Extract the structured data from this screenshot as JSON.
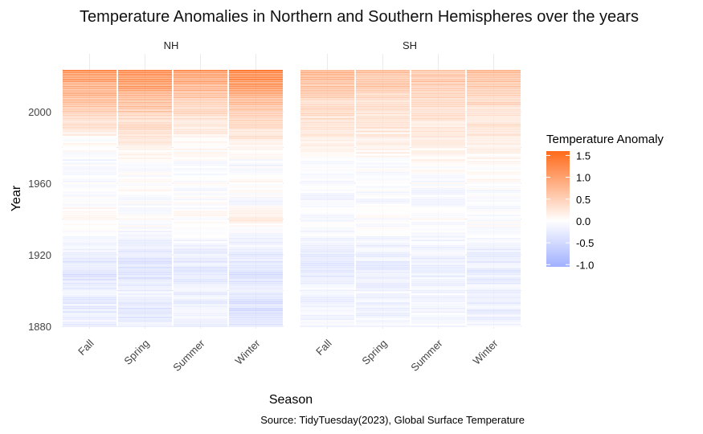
{
  "chart_data": {
    "type": "heatmap",
    "title": "Temperature Anomalies in Northern and Southern Hemispheres over the years",
    "xlabel": "Season",
    "ylabel": "Year",
    "caption": "Source: TidyTuesday(2023), Global Surface Temperature",
    "facets": [
      "NH",
      "SH"
    ],
    "categories": [
      "Fall",
      "Spring",
      "Summer",
      "Winter"
    ],
    "y_ticks": [
      1880,
      1920,
      1960,
      2000
    ],
    "ylim": [
      1880,
      2023
    ],
    "legend": {
      "title": "Temperature Anomaly",
      "ticks": [
        1.5,
        1.0,
        0.5,
        0.0,
        -0.5,
        -1.0
      ],
      "tick_labels": [
        "1.5",
        "1.0",
        "0.5",
        "0.0",
        "-0.5",
        "-1.0"
      ],
      "range": [
        -1.05,
        1.6
      ],
      "low_color": "#a0b0ff",
      "mid_color": "#ffffff",
      "high_color": "#ff6a1a",
      "placement": "right"
    },
    "grid": true,
    "data_colors": {
      "panel_bg": "#ffffff",
      "grid": "#ebebeb"
    },
    "anchors": {
      "NH": {
        "Fall": [
          [
            1880,
            -0.28
          ],
          [
            1890,
            -0.3
          ],
          [
            1900,
            -0.22
          ],
          [
            1910,
            -0.42
          ],
          [
            1920,
            -0.22
          ],
          [
            1930,
            -0.1
          ],
          [
            1940,
            0.1
          ],
          [
            1945,
            0.12
          ],
          [
            1950,
            -0.1
          ],
          [
            1960,
            0.0
          ],
          [
            1965,
            -0.1
          ],
          [
            1970,
            -0.05
          ],
          [
            1975,
            -0.1
          ],
          [
            1980,
            0.08
          ],
          [
            1985,
            0.05
          ],
          [
            1990,
            0.28
          ],
          [
            1995,
            0.4
          ],
          [
            2000,
            0.5
          ],
          [
            2005,
            0.75
          ],
          [
            2010,
            0.85
          ],
          [
            2015,
            1.05
          ],
          [
            2020,
            1.2
          ],
          [
            2023,
            1.4
          ]
        ],
        "Spring": [
          [
            1880,
            -0.28
          ],
          [
            1890,
            -0.35
          ],
          [
            1900,
            -0.2
          ],
          [
            1910,
            -0.45
          ],
          [
            1920,
            -0.3
          ],
          [
            1930,
            -0.15
          ],
          [
            1940,
            0.05
          ],
          [
            1950,
            -0.05
          ],
          [
            1960,
            0.02
          ],
          [
            1970,
            -0.02
          ],
          [
            1980,
            0.15
          ],
          [
            1990,
            0.35
          ],
          [
            1995,
            0.4
          ],
          [
            2000,
            0.6
          ],
          [
            2005,
            0.8
          ],
          [
            2010,
            0.95
          ],
          [
            2015,
            1.15
          ],
          [
            2020,
            1.3
          ],
          [
            2023,
            1.45
          ]
        ],
        "Summer": [
          [
            1880,
            -0.15
          ],
          [
            1890,
            -0.25
          ],
          [
            1900,
            -0.2
          ],
          [
            1910,
            -0.35
          ],
          [
            1920,
            -0.25
          ],
          [
            1930,
            -0.12
          ],
          [
            1940,
            0.02
          ],
          [
            1950,
            -0.05
          ],
          [
            1960,
            0.0
          ],
          [
            1970,
            -0.05
          ],
          [
            1980,
            0.05
          ],
          [
            1990,
            0.25
          ],
          [
            2000,
            0.45
          ],
          [
            2005,
            0.65
          ],
          [
            2010,
            0.8
          ],
          [
            2015,
            0.95
          ],
          [
            2020,
            1.1
          ],
          [
            2023,
            1.25
          ]
        ],
        "Winter": [
          [
            1880,
            -0.4
          ],
          [
            1890,
            -0.5
          ],
          [
            1900,
            -0.3
          ],
          [
            1910,
            -0.45
          ],
          [
            1920,
            -0.28
          ],
          [
            1930,
            -0.1
          ],
          [
            1940,
            0.18
          ],
          [
            1945,
            0.1
          ],
          [
            1950,
            -0.1
          ],
          [
            1960,
            0.05
          ],
          [
            1965,
            -0.05
          ],
          [
            1970,
            -0.1
          ],
          [
            1980,
            0.15
          ],
          [
            1990,
            0.4
          ],
          [
            2000,
            0.65
          ],
          [
            2005,
            0.85
          ],
          [
            2010,
            1.0
          ],
          [
            2015,
            1.3
          ],
          [
            2020,
            1.4
          ],
          [
            2023,
            1.55
          ]
        ]
      },
      "SH": {
        "Fall": [
          [
            1880,
            -0.15
          ],
          [
            1890,
            -0.2
          ],
          [
            1900,
            -0.15
          ],
          [
            1910,
            -0.3
          ],
          [
            1920,
            -0.25
          ],
          [
            1930,
            -0.15
          ],
          [
            1940,
            -0.02
          ],
          [
            1950,
            -0.1
          ],
          [
            1960,
            -0.05
          ],
          [
            1970,
            -0.02
          ],
          [
            1980,
            0.15
          ],
          [
            1990,
            0.3
          ],
          [
            2000,
            0.4
          ],
          [
            2010,
            0.55
          ],
          [
            2015,
            0.7
          ],
          [
            2020,
            0.8
          ],
          [
            2023,
            0.85
          ]
        ],
        "Spring": [
          [
            1880,
            -0.15
          ],
          [
            1890,
            -0.2
          ],
          [
            1900,
            -0.15
          ],
          [
            1910,
            -0.28
          ],
          [
            1920,
            -0.22
          ],
          [
            1930,
            -0.12
          ],
          [
            1940,
            0.0
          ],
          [
            1950,
            -0.08
          ],
          [
            1960,
            -0.03
          ],
          [
            1970,
            0.0
          ],
          [
            1980,
            0.15
          ],
          [
            1990,
            0.25
          ],
          [
            2000,
            0.35
          ],
          [
            2010,
            0.5
          ],
          [
            2015,
            0.62
          ],
          [
            2020,
            0.7
          ],
          [
            2023,
            0.75
          ]
        ],
        "Summer": [
          [
            1880,
            -0.12
          ],
          [
            1890,
            -0.18
          ],
          [
            1900,
            -0.15
          ],
          [
            1910,
            -0.25
          ],
          [
            1920,
            -0.2
          ],
          [
            1930,
            -0.1
          ],
          [
            1940,
            0.0
          ],
          [
            1950,
            -0.08
          ],
          [
            1960,
            -0.03
          ],
          [
            1970,
            0.02
          ],
          [
            1980,
            0.15
          ],
          [
            1990,
            0.25
          ],
          [
            2000,
            0.35
          ],
          [
            2010,
            0.5
          ],
          [
            2015,
            0.6
          ],
          [
            2020,
            0.68
          ],
          [
            2023,
            0.72
          ]
        ],
        "Winter": [
          [
            1880,
            -0.18
          ],
          [
            1890,
            -0.22
          ],
          [
            1900,
            -0.18
          ],
          [
            1910,
            -0.3
          ],
          [
            1920,
            -0.25
          ],
          [
            1930,
            -0.12
          ],
          [
            1940,
            0.0
          ],
          [
            1950,
            -0.05
          ],
          [
            1960,
            0.0
          ],
          [
            1970,
            0.05
          ],
          [
            1980,
            0.2
          ],
          [
            1990,
            0.3
          ],
          [
            2000,
            0.4
          ],
          [
            2010,
            0.55
          ],
          [
            2015,
            0.65
          ],
          [
            2020,
            0.72
          ],
          [
            2023,
            0.78
          ]
        ]
      }
    }
  }
}
